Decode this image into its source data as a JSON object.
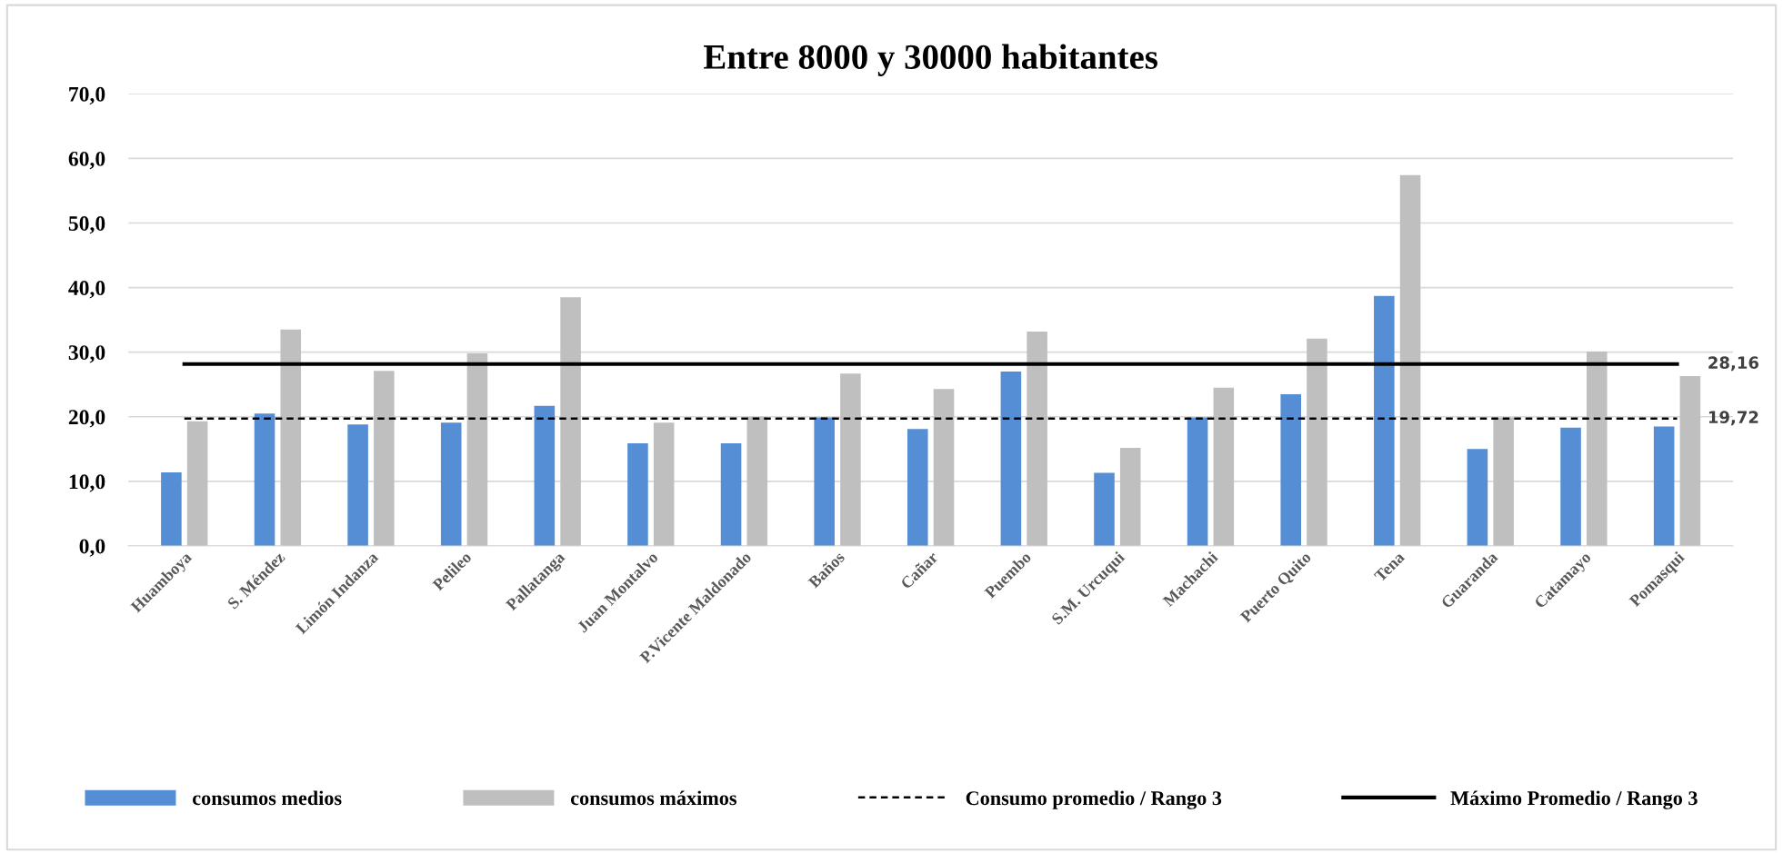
{
  "chart_data": {
    "type": "bar",
    "title": "Entre 8000 y 30000 habitantes",
    "categories": [
      "Huamboya",
      "S. Méndez",
      "Limón Indanza",
      "Pelileo",
      "Pallatanga",
      "Juan Montalvo",
      "P.Vicente Maldonado",
      "Baños",
      "Cañar",
      "Puembo",
      "S.M. Urcuqui",
      "Machachi",
      "Puerto Quito",
      "Tena",
      "Guaranda",
      "Catamayo",
      "Pomasqui"
    ],
    "series": [
      {
        "name": "consumos medios",
        "color": "#558ed5",
        "values": [
          11.4,
          20.5,
          18.8,
          19.1,
          21.7,
          15.9,
          15.9,
          19.9,
          18.1,
          27.0,
          11.3,
          19.9,
          23.5,
          38.7,
          15.0,
          18.3,
          18.5
        ]
      },
      {
        "name": "consumos máximos",
        "color": "#bfbfbf",
        "values": [
          19.3,
          33.5,
          27.1,
          29.8,
          38.5,
          19.1,
          20.0,
          26.7,
          24.3,
          33.2,
          15.2,
          24.5,
          32.1,
          57.4,
          19.9,
          30.1,
          26.3
        ]
      },
      {
        "name": "Consumo promedio / Rango 3",
        "type": "line",
        "color": "#000000",
        "line_style": "dashed",
        "values": [
          19.72,
          19.72,
          19.72,
          19.72,
          19.72,
          19.72,
          19.72,
          19.72,
          19.72,
          19.72,
          19.72,
          19.72,
          19.72,
          19.72,
          19.72,
          19.72,
          19.72
        ],
        "value_labels": [
          null,
          null,
          null,
          null,
          null,
          null,
          null,
          null,
          null,
          null,
          null,
          null,
          null,
          null,
          null,
          null,
          "19,72"
        ]
      },
      {
        "name": "Máximo Promedio / Rango 3",
        "type": "line",
        "color": "#000000",
        "line_style": "solid",
        "values": [
          28.16,
          28.16,
          28.16,
          28.16,
          28.16,
          28.16,
          28.16,
          28.16,
          28.16,
          28.16,
          28.16,
          28.16,
          28.16,
          28.16,
          28.16,
          28.16,
          28.16
        ],
        "value_labels": [
          null,
          null,
          null,
          null,
          null,
          null,
          null,
          null,
          null,
          null,
          null,
          null,
          null,
          null,
          null,
          null,
          "28,16"
        ]
      }
    ],
    "ylim": [
      0,
      70
    ],
    "yticks": [
      {
        "value": 0,
        "label": "0,0"
      },
      {
        "value": 10,
        "label": "10,0"
      },
      {
        "value": 20,
        "label": "20,0"
      },
      {
        "value": 30,
        "label": "30,0"
      },
      {
        "value": 40,
        "label": "40,0"
      },
      {
        "value": 50,
        "label": "50,0"
      },
      {
        "value": 60,
        "label": "60,0"
      },
      {
        "value": 70,
        "label": "70,0"
      }
    ],
    "grid": "y",
    "legend": "bottom"
  }
}
